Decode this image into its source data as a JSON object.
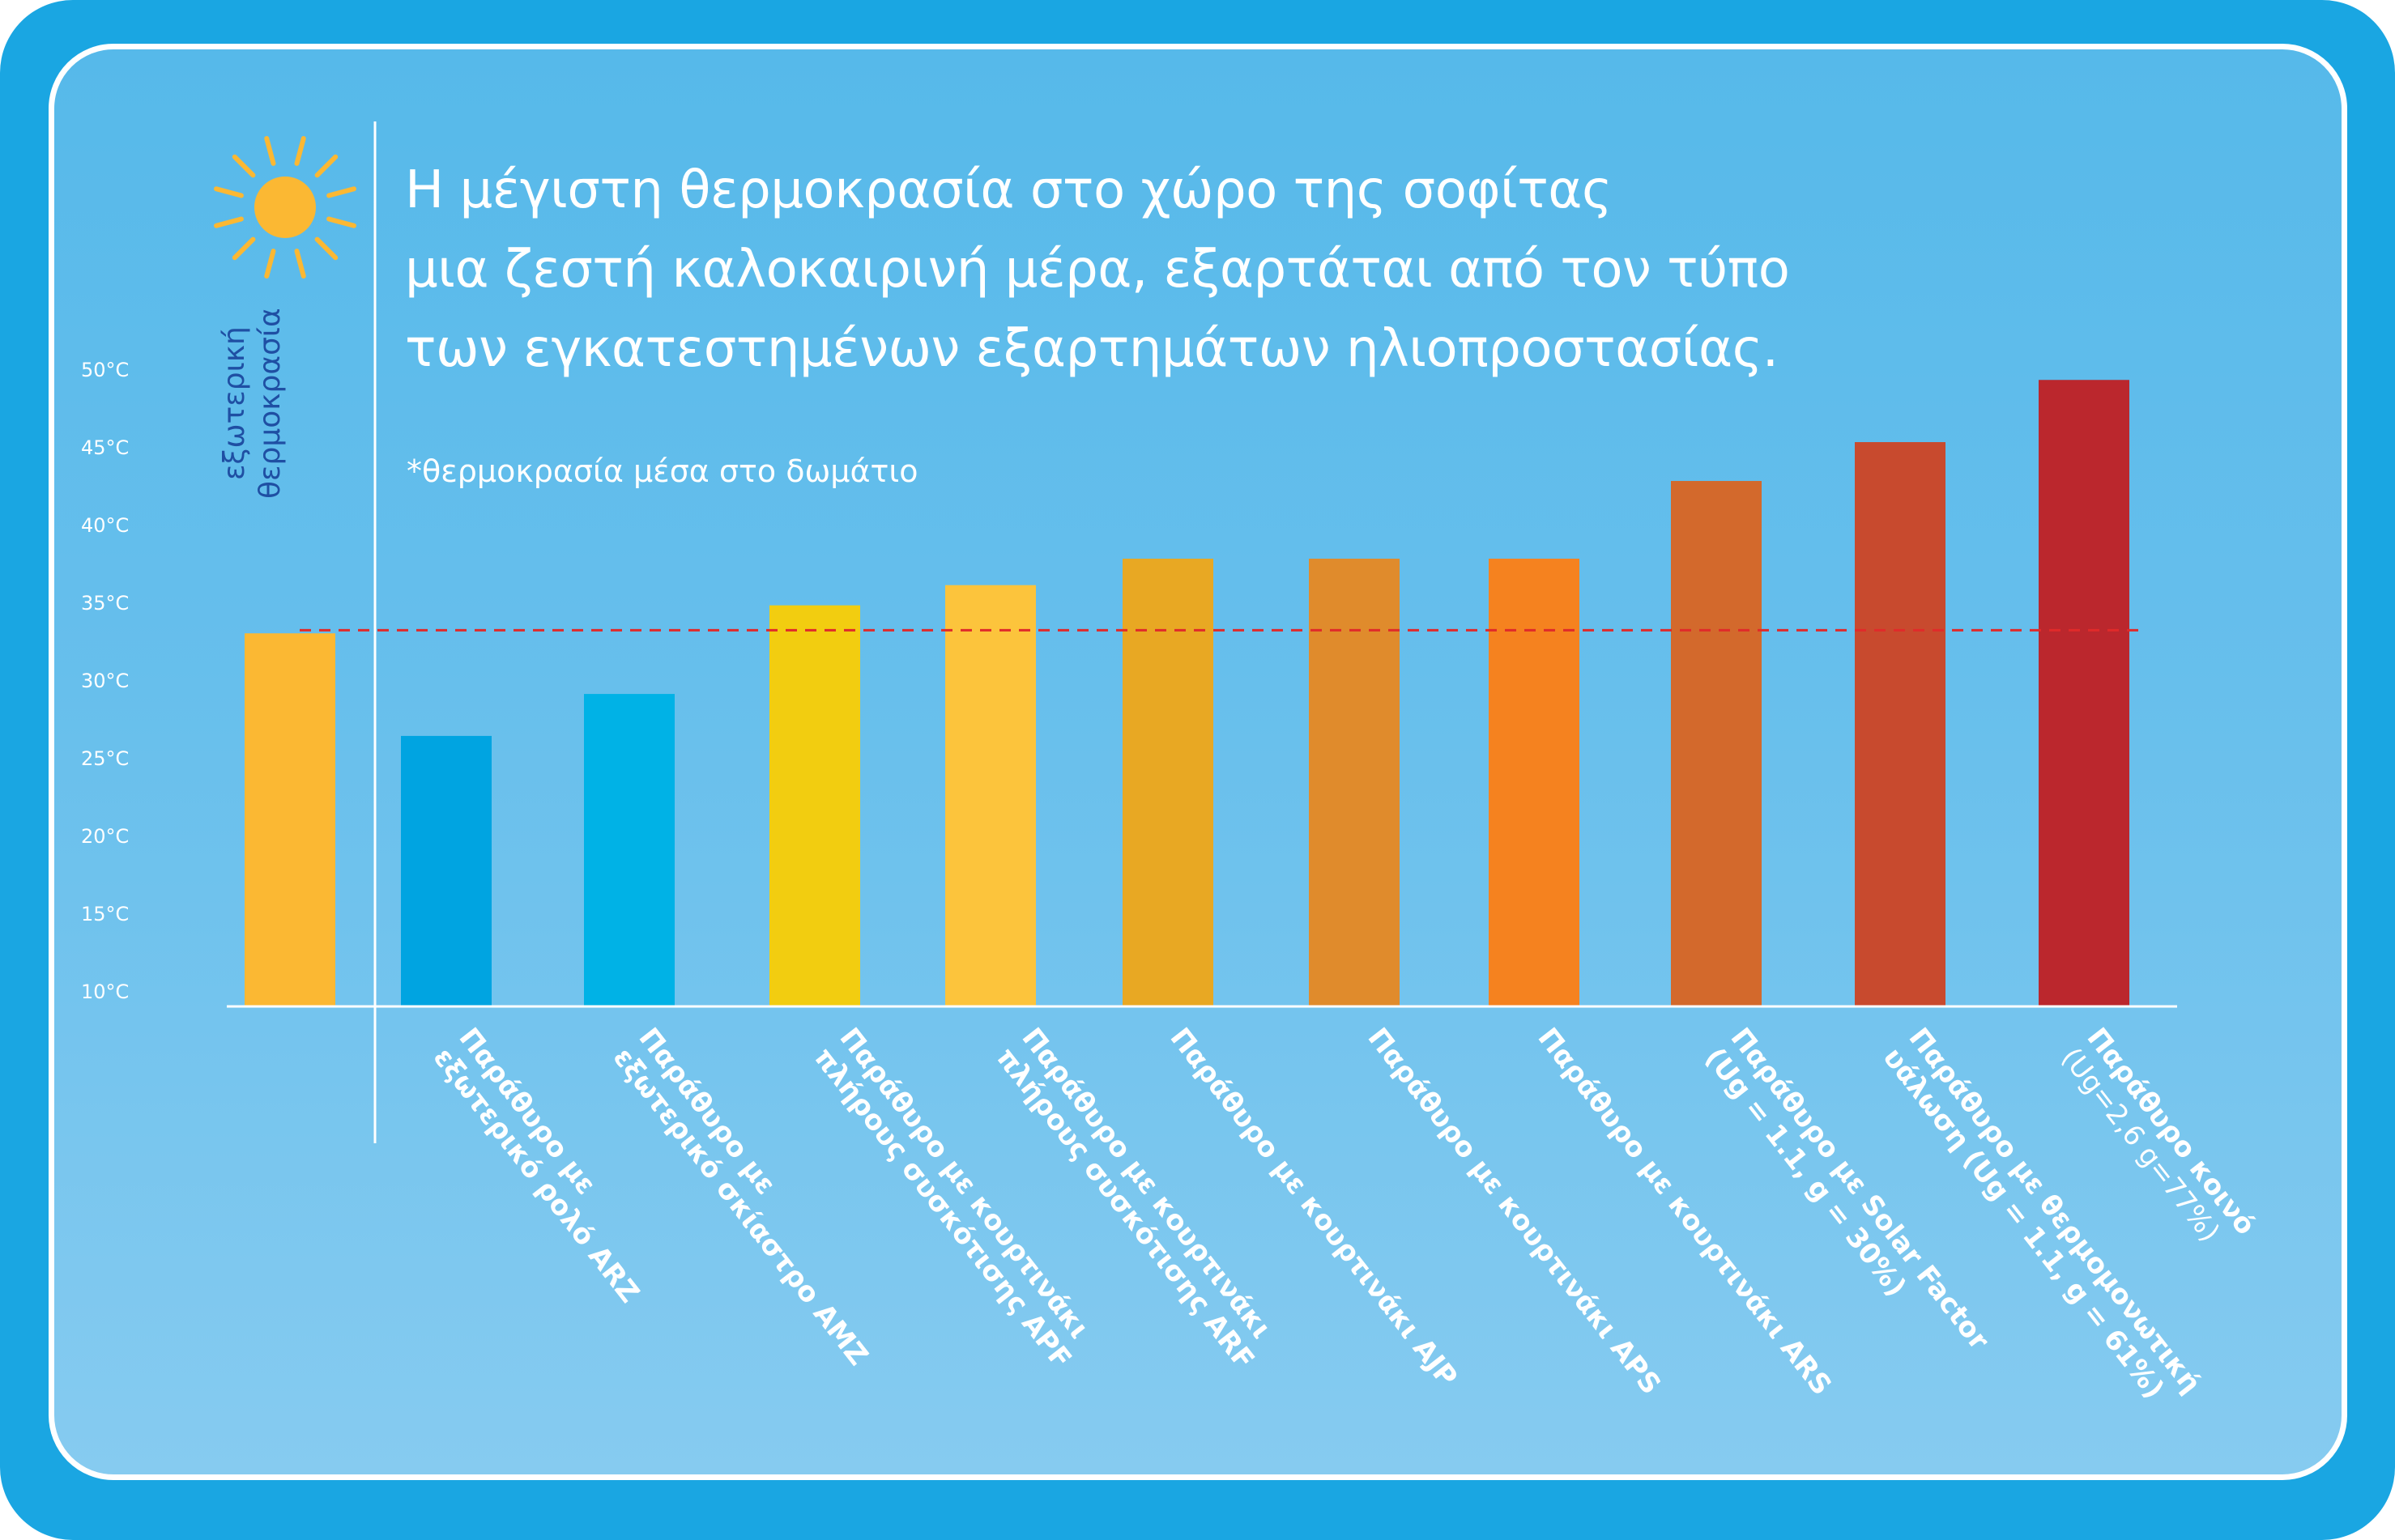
{
  "title_lines": [
    "Η μέγιστη θερμοκρασία στο χώρο της σοφίτας",
    "μια ζεστή καλοκαιρινή μέρα, εξαρτάται από τον τύπο",
    "των εγκατεστημένων εξαρτημάτων ηλιοπροστασίας."
  ],
  "subtitle": "*θερμοκρασία μέσα στο δωμάτιο",
  "external_label": [
    "εξωτερική",
    "θερμοκρασία"
  ],
  "icons": {
    "sun": "sun-icon"
  },
  "colors": {
    "frame": "#1aa6e2",
    "reference_line": "#e02a2a",
    "axis": "#ffffff"
  },
  "chart_data": {
    "type": "bar",
    "title": "",
    "xlabel": "",
    "ylabel": "",
    "ylim": [
      10,
      50
    ],
    "y_ticks": [
      "10°C",
      "15°C",
      "20°C",
      "25°C",
      "30°C",
      "35°C",
      "40°C",
      "45°C",
      "50°C"
    ],
    "y_tick_values": [
      10,
      15,
      20,
      25,
      30,
      35,
      40,
      45,
      50
    ],
    "reference_line": 34.2,
    "grid": false,
    "categories": [
      {
        "label": "",
        "sub": "",
        "value": 34,
        "color": "#fbb833"
      },
      {
        "label": "Παράθυρο με\nεξωτερικό ρολό ARZ",
        "sub": "",
        "value": 27.4,
        "color": "#00a4e1"
      },
      {
        "label": "Παράθυρο με\nεξωτερικό σκίαστρο AMZ",
        "sub": "",
        "value": 30.1,
        "color": "#00b2e6"
      },
      {
        "label": "Παράθυρο με κουρτινάκι\nπλήρους συσκότισης APF",
        "sub": "",
        "value": 35.8,
        "color": "#f2cd10"
      },
      {
        "label": "Παράθυρο με κουρτινάκι\nπλήρους συσκότισης ARF",
        "sub": "",
        "value": 37.1,
        "color": "#fcc43c"
      },
      {
        "label": "Παράθυρο με κουρτινάκι AJP",
        "sub": "",
        "value": 38.8,
        "color": "#e8a823"
      },
      {
        "label": "Παράθυρο με κουρτινάκι APS",
        "sub": "",
        "value": 38.8,
        "color": "#e08b2c"
      },
      {
        "label": "Παράθυρο με κουρτινάκι ARS",
        "sub": "",
        "value": 38.8,
        "color": "#f5821f"
      },
      {
        "label": "Παράθυρο με Solar Factor\n(Ug = 1.1, g = 30%)",
        "sub": "",
        "value": 43.8,
        "color": "#d3692c"
      },
      {
        "label": "Παράθυρο με θερμομονωτική\nυάλωση (Ug = 1.1, g = 61%)",
        "sub": "",
        "value": 46.3,
        "color": "#c84a2e"
      },
      {
        "label": "Παράθυρο κοινό",
        "sub": "(Ug=2,6 g=77%)",
        "value": 50.3,
        "color": "#bb272d"
      }
    ]
  }
}
